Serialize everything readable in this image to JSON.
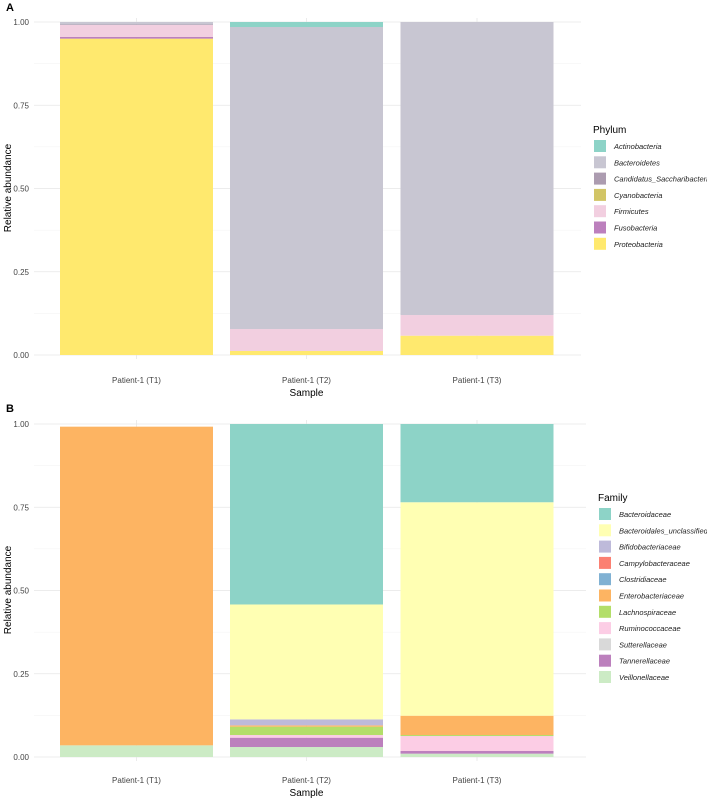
{
  "chart_data": [
    {
      "type": "bar",
      "panel_label": "A",
      "title": "",
      "xlabel": "Sample",
      "ylabel": "Relative abundance",
      "ylim": [
        0,
        1
      ],
      "yticks": [
        "0.00",
        "0.25",
        "0.50",
        "0.75",
        "1.00"
      ],
      "grid": true,
      "legend_position": "right",
      "legend_title": "Phylum",
      "categories": [
        "Patient-1 (T1)",
        "Patient-1 (T2)",
        "Patient-1 (T3)"
      ],
      "series": [
        {
          "name": "Proteobacteria",
          "color": "#FFE96E",
          "values": [
            0.95,
            0.012,
            0.058
          ]
        },
        {
          "name": "Fusobacteria",
          "color": "#BC80BD",
          "values": [
            0.005,
            0.0,
            0.0
          ]
        },
        {
          "name": "Firmicutes",
          "color": "#F2CFE0",
          "values": [
            0.036,
            0.066,
            0.062
          ]
        },
        {
          "name": "Cyanobacteria",
          "color": "#D2C566",
          "values": [
            0.0,
            0.0,
            0.0
          ]
        },
        {
          "name": "Candidatus_Saccharibacteria",
          "color": "#AC9CB0",
          "values": [
            0.002,
            0.0,
            0.0
          ]
        },
        {
          "name": "Bacteroidetes",
          "color": "#C8C6D2",
          "values": [
            0.007,
            0.907,
            0.88
          ]
        },
        {
          "name": "Actinobacteria",
          "color": "#8DD3C7",
          "values": [
            0.0,
            0.015,
            0.0
          ]
        }
      ]
    },
    {
      "type": "bar",
      "panel_label": "B",
      "title": "",
      "xlabel": "Sample",
      "ylabel": "Relative abundance",
      "ylim": [
        0,
        1
      ],
      "yticks": [
        "0.00",
        "0.25",
        "0.50",
        "0.75",
        "1.00"
      ],
      "grid": true,
      "legend_position": "right",
      "legend_title": "Family",
      "categories": [
        "Patient-1 (T1)",
        "Patient-1 (T2)",
        "Patient-1 (T3)"
      ],
      "series": [
        {
          "name": "Veillonellaceae",
          "color": "#CCEBC5",
          "values": [
            0.035,
            0.03,
            0.01
          ]
        },
        {
          "name": "Tannerellaceae",
          "color": "#BC80BD",
          "values": [
            0.0,
            0.028,
            0.008
          ]
        },
        {
          "name": "Sutterellaceae",
          "color": "#D9D9D9",
          "values": [
            0.0,
            0.0,
            0.0
          ]
        },
        {
          "name": "Ruminococcaceae",
          "color": "#FCCDE5",
          "values": [
            0.0,
            0.008,
            0.045
          ]
        },
        {
          "name": "Lachnospiraceae",
          "color": "#B3DE69",
          "values": [
            0.0,
            0.025,
            0.003
          ]
        },
        {
          "name": "Enterobacteriaceae",
          "color": "#FDB462",
          "values": [
            0.957,
            0.004,
            0.058
          ]
        },
        {
          "name": "Clostridiaceae",
          "color": "#80B1D3",
          "values": [
            0.0,
            0.0,
            0.0
          ]
        },
        {
          "name": "Campylobacteraceae",
          "color": "#FB8072",
          "values": [
            0.0,
            0.0,
            0.0
          ]
        },
        {
          "name": "Bifidobacteriaceae",
          "color": "#BEBADA",
          "values": [
            0.0,
            0.018,
            0.0
          ]
        },
        {
          "name": "Bacteroidales_unclassified",
          "color": "#FFFFB3",
          "values": [
            0.0,
            0.345,
            0.641
          ]
        },
        {
          "name": "Bacteroidaceae",
          "color": "#8DD3C7",
          "values": [
            0.0,
            0.542,
            0.235
          ]
        }
      ]
    }
  ]
}
